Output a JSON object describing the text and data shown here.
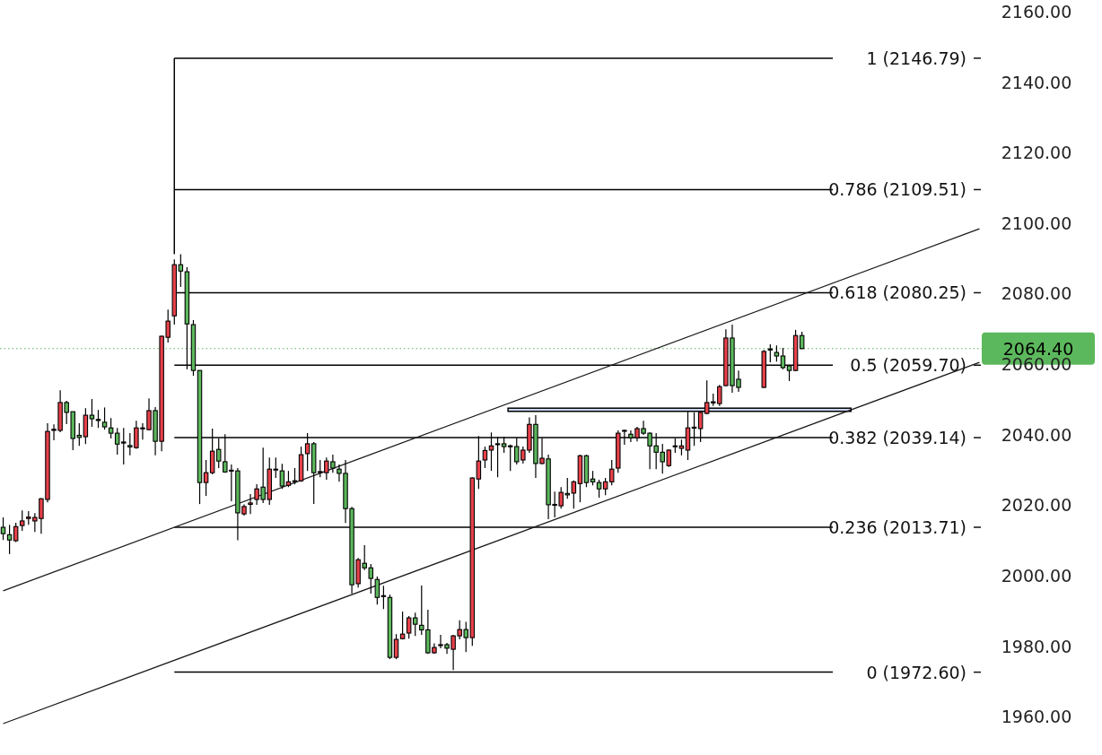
{
  "chart_data": {
    "type": "candlestick",
    "categories": [
      null,
      null,
      null,
      null,
      null,
      null,
      null,
      null,
      null,
      null,
      null,
      null,
      null,
      null,
      null,
      null,
      null,
      null,
      null,
      null,
      null,
      null,
      null,
      null,
      null,
      null,
      null,
      null,
      null,
      null,
      null,
      null,
      null,
      null,
      null,
      null,
      null,
      null,
      null,
      null,
      null,
      null,
      null,
      null,
      null,
      null,
      null,
      null,
      null,
      null,
      null,
      null,
      null,
      null,
      null,
      null,
      null,
      null,
      null,
      null,
      null,
      null,
      null,
      null,
      null,
      null,
      null,
      null,
      null,
      null,
      null,
      null,
      null,
      null,
      null,
      null,
      null,
      null,
      null,
      null,
      null,
      null,
      null,
      null,
      null,
      null,
      null,
      null,
      null,
      null,
      null,
      null,
      null,
      null,
      null,
      null,
      null,
      null,
      null,
      null,
      null,
      null,
      null,
      null,
      null,
      null,
      null,
      null,
      null,
      null,
      null,
      null,
      null,
      null,
      null,
      null,
      null,
      null,
      null,
      null,
      null,
      null,
      null,
      null,
      null,
      null,
      null,
      null,
      null,
      null,
      null,
      null,
      null,
      null,
      null,
      null,
      null,
      null,
      null,
      null,
      null,
      null,
      null,
      null,
      null,
      null,
      null,
      null,
      null,
      null,
      null,
      null,
      null,
      null,
      null
    ],
    "ohlc": [
      [
        2013.7,
        2016.5,
        2010.1,
        2011.9
      ],
      [
        2011.6,
        2014.4,
        2006.1,
        2010.1
      ],
      [
        2009.9,
        2015.0,
        2009.5,
        2013.9
      ],
      [
        2014.2,
        2018.5,
        2012.7,
        2015.5
      ],
      [
        2016.2,
        2018.3,
        2014.4,
        2016.6
      ],
      [
        2015.5,
        2017.7,
        2012.4,
        2016.5
      ],
      [
        2016.2,
        2022.0,
        2011.9,
        2021.8
      ],
      [
        2021.6,
        2043.2,
        2020.8,
        2040.9
      ],
      [
        2041.2,
        2042.9,
        2038.4,
        2041.5
      ],
      [
        2041.2,
        2052.6,
        2040.7,
        2049.1
      ],
      [
        2049.1,
        2049.6,
        2043.0,
        2046.3
      ],
      [
        2046.5,
        2046.5,
        2035.6,
        2038.9
      ],
      [
        2039.8,
        2043.2,
        2036.8,
        2039.2
      ],
      [
        2039.4,
        2047.5,
        2037.3,
        2045.5
      ],
      [
        2045.5,
        2050.1,
        2042.2,
        2044.5
      ],
      [
        2044.3,
        2047.0,
        2041.9,
        2044.0
      ],
      [
        2043.5,
        2047.7,
        2041.4,
        2042.2
      ],
      [
        2041.9,
        2044.7,
        2038.9,
        2040.4
      ],
      [
        2040.4,
        2041.9,
        2034.3,
        2037.3
      ],
      [
        2037.9,
        2041.9,
        2031.5,
        2037.6
      ],
      [
        2036.9,
        2040.4,
        2034.1,
        2036.5
      ],
      [
        2036.3,
        2043.9,
        2036.0,
        2041.9
      ],
      [
        2041.7,
        2043.2,
        2038.6,
        2041.9
      ],
      [
        2041.4,
        2050.3,
        2041.2,
        2046.8
      ],
      [
        2046.8,
        2047.8,
        2034.1,
        2038.1
      ],
      [
        2038.1,
        2068.1,
        2035.3,
        2067.9
      ],
      [
        2067.6,
        2075.5,
        2066.1,
        2072.2
      ],
      [
        2073.7,
        2089.7,
        2071.2,
        2088.2
      ],
      [
        2088.2,
        2091.2,
        2081.9,
        2086.4
      ],
      [
        2086.2,
        2087.5,
        2058.5,
        2071.4
      ],
      [
        2071.2,
        2072.5,
        2056.7,
        2058.2
      ],
      [
        2058.2,
        2058.2,
        2020.3,
        2026.4
      ],
      [
        2026.4,
        2032.8,
        2022.6,
        2029.2
      ],
      [
        2029.2,
        2041.7,
        2028.7,
        2035.3
      ],
      [
        2035.8,
        2038.9,
        2030.5,
        2032.5
      ],
      [
        2032.3,
        2040.1,
        2029.2,
        2029.4
      ],
      [
        2029.9,
        2031.5,
        2021.1,
        2029.7
      ],
      [
        2029.7,
        2030.5,
        2010.0,
        2017.8
      ],
      [
        2017.5,
        2020.2,
        2017.0,
        2019.6
      ],
      [
        2020.2,
        2023.1,
        2017.5,
        2020.6
      ],
      [
        2021.6,
        2025.9,
        2020.1,
        2024.6
      ],
      [
        2025.1,
        2036.3,
        2020.6,
        2021.6
      ],
      [
        2021.6,
        2033.5,
        2020.1,
        2030.2
      ],
      [
        2030.0,
        2033.5,
        2027.7,
        2030.2
      ],
      [
        2029.7,
        2031.7,
        2024.6,
        2025.4
      ],
      [
        2025.6,
        2029.7,
        2025.1,
        2026.6
      ],
      [
        2026.8,
        2030.5,
        2025.9,
        2026.9
      ],
      [
        2026.9,
        2036.6,
        2026.6,
        2034.3
      ],
      [
        2034.6,
        2040.4,
        2029.7,
        2037.4
      ],
      [
        2037.4,
        2037.9,
        2020.3,
        2029.2
      ],
      [
        2029.5,
        2032.8,
        2027.9,
        2029.4
      ],
      [
        2029.2,
        2033.5,
        2027.2,
        2032.5
      ],
      [
        2032.3,
        2034.3,
        2029.2,
        2030.5
      ],
      [
        2030.2,
        2031.5,
        2026.6,
        2029.0
      ],
      [
        2029.0,
        2032.8,
        2014.9,
        2019.0
      ],
      [
        2019.0,
        2019.5,
        1994.9,
        1997.4
      ],
      [
        1997.7,
        2005.0,
        1996.6,
        2004.5
      ],
      [
        2003.5,
        2008.6,
        2001.6,
        2002.2
      ],
      [
        2002.2,
        2003.3,
        1994.9,
        1999.2
      ],
      [
        1998.9,
        1999.7,
        1991.8,
        1993.8
      ],
      [
        1994.3,
        1997.1,
        1990.5,
        1994.1
      ],
      [
        1993.8,
        1994.6,
        1976.3,
        1976.8
      ],
      [
        1976.8,
        1983.4,
        1976.3,
        1981.9
      ],
      [
        1982.1,
        1989.8,
        1981.9,
        1983.4
      ],
      [
        1983.7,
        1988.5,
        1982.1,
        1988.0
      ],
      [
        1988.0,
        1989.5,
        1982.9,
        1986.2
      ],
      [
        1985.9,
        1997.2,
        1983.2,
        1984.6
      ],
      [
        1984.6,
        1990.3,
        1977.8,
        1978.1
      ],
      [
        1978.1,
        1980.8,
        1977.8,
        1979.6
      ],
      [
        1980.2,
        1983.2,
        1979.4,
        1980.4
      ],
      [
        1980.4,
        1980.9,
        1977.8,
        1979.4
      ],
      [
        1979.1,
        1983.2,
        1973.2,
        1982.9
      ],
      [
        1982.9,
        1987.3,
        1981.9,
        1984.7
      ],
      [
        1984.7,
        1986.9,
        1978.3,
        1982.4
      ],
      [
        1982.4,
        2027.9,
        1980.1,
        2027.7
      ],
      [
        2027.4,
        2039.6,
        2024.6,
        2032.5
      ],
      [
        2032.8,
        2036.6,
        2030.5,
        2035.5
      ],
      [
        2035.6,
        2040.6,
        2029.7,
        2036.8
      ],
      [
        2037.3,
        2039.4,
        2027.9,
        2037.4
      ],
      [
        2037.4,
        2039.4,
        2034.8,
        2036.6
      ],
      [
        2036.8,
        2037.2,
        2029.7,
        2036.7
      ],
      [
        2036.6,
        2039.1,
        2031.5,
        2032.3
      ],
      [
        2032.8,
        2036.6,
        2031.8,
        2035.6
      ],
      [
        2035.6,
        2044.9,
        2034.8,
        2042.9
      ],
      [
        2042.9,
        2045.5,
        2027.7,
        2031.8
      ],
      [
        2031.8,
        2039.1,
        2031.6,
        2033.3
      ],
      [
        2033.1,
        2034.3,
        2016.0,
        2020.1
      ],
      [
        2020.2,
        2023.8,
        2016.5,
        2020.0
      ],
      [
        2019.8,
        2025.1,
        2019.0,
        2023.6
      ],
      [
        2023.3,
        2027.7,
        2021.8,
        2022.9
      ],
      [
        2023.4,
        2027.0,
        2019.0,
        2026.6
      ],
      [
        2026.1,
        2034.3,
        2020.8,
        2034.0
      ],
      [
        2034.0,
        2034.3,
        2025.1,
        2026.4
      ],
      [
        2027.4,
        2029.7,
        2025.6,
        2026.6
      ],
      [
        2026.4,
        2027.2,
        2022.1,
        2024.6
      ],
      [
        2024.6,
        2027.7,
        2022.8,
        2026.6
      ],
      [
        2026.6,
        2032.8,
        2025.6,
        2030.2
      ],
      [
        2030.5,
        2041.2,
        2029.2,
        2040.4
      ],
      [
        2041.0,
        2041.4,
        2037.1,
        2041.2
      ],
      [
        2040.1,
        2041.2,
        2037.9,
        2039.1
      ],
      [
        2039.1,
        2042.2,
        2038.1,
        2041.7
      ],
      [
        2041.7,
        2043.9,
        2039.9,
        2040.4
      ],
      [
        2040.4,
        2040.6,
        2030.2,
        2036.8
      ],
      [
        2036.8,
        2040.4,
        2030.2,
        2035.0
      ],
      [
        2035.0,
        2037.4,
        2028.9,
        2032.3
      ],
      [
        2031.2,
        2035.8,
        2030.8,
        2035.6
      ],
      [
        2036.6,
        2038.9,
        2034.8,
        2036.8
      ],
      [
        2036.1,
        2038.6,
        2034.1,
        2036.8
      ],
      [
        2035.6,
        2046.5,
        2032.8,
        2041.9
      ],
      [
        2041.9,
        2046.3,
        2036.8,
        2042.1
      ],
      [
        2041.7,
        2046.8,
        2037.9,
        2046.3
      ],
      [
        2046.0,
        2055.4,
        2045.8,
        2049.1
      ],
      [
        2049.0,
        2051.6,
        2048.1,
        2049.3
      ],
      [
        2048.8,
        2054.1,
        2048.1,
        2053.6
      ],
      [
        2053.9,
        2069.9,
        2053.7,
        2067.4
      ],
      [
        2067.4,
        2071.2,
        2051.9,
        2053.9
      ],
      [
        2055.7,
        2058.2,
        2052.1,
        2053.4
      ],
      null,
      null,
      null,
      [
        2053.4,
        2064.0,
        2053.2,
        2063.6
      ],
      [
        2064.0,
        2065.6,
        2060.5,
        2064.3
      ],
      [
        2063.3,
        2065.3,
        2060.7,
        2062.3
      ],
      [
        2062.3,
        2064.6,
        2058.5,
        2059.0
      ],
      [
        2059.5,
        2059.7,
        2055.2,
        2058.2
      ],
      [
        2058.2,
        2069.7,
        2058.0,
        2068.1
      ],
      [
        2068.1,
        2069.2,
        2064.2,
        2064.4
      ],
      null,
      null,
      null,
      null,
      null,
      null,
      null,
      null,
      null,
      null,
      null,
      null,
      null,
      null,
      null,
      null,
      null,
      null,
      null,
      null,
      null,
      null,
      null,
      null,
      null,
      null,
      null,
      null
    ],
    "colors": [
      "#5cb85c",
      "#5cb85c",
      "#e8414b",
      "#e8414b",
      "#e8414b",
      "#e8414b",
      "#e8414b",
      "#e8414b",
      "#e8414b",
      "#e8414b",
      "#5cb85c",
      "#5cb85c",
      "#5cb85c",
      "#e8414b",
      "#5cb85c",
      "#5cb85c",
      "#5cb85c",
      "#5cb85c",
      "#5cb85c",
      "#5cb85c",
      "#5cb85c",
      "#e8414b",
      "#e8414b",
      "#e8414b",
      "#5cb85c",
      "#e8414b",
      "#e8414b",
      "#e8414b",
      "#5cb85c",
      "#5cb85c",
      "#5cb85c",
      "#5cb85c",
      "#e8414b",
      "#e8414b",
      "#5cb85c",
      "#5cb85c",
      "#5cb85c",
      "#5cb85c",
      "#e8414b",
      "#e8414b",
      "#e8414b",
      "#5cb85c",
      "#e8414b",
      "#e8414b",
      "#5cb85c",
      "#e8414b",
      "#e8414b",
      "#e8414b",
      "#e8414b",
      "#5cb85c",
      "#5cb85c",
      "#e8414b",
      "#5cb85c",
      "#5cb85c",
      "#5cb85c",
      "#5cb85c",
      "#e8414b",
      "#5cb85c",
      "#5cb85c",
      "#5cb85c",
      "#5cb85c",
      "#5cb85c",
      "#e8414b",
      "#e8414b",
      "#e8414b",
      "#5cb85c",
      "#5cb85c",
      "#5cb85c",
      "#e8414b",
      "#e8414b",
      "#5cb85c",
      "#e8414b",
      "#e8414b",
      "#5cb85c",
      "#e8414b",
      "#e8414b",
      "#e8414b",
      "#e8414b",
      "#e8414b",
      "#5cb85c",
      "#5cb85c",
      "#5cb85c",
      "#e8414b",
      "#e8414b",
      "#5cb85c",
      "#e8414b",
      "#5cb85c",
      "#5cb85c",
      "#e8414b",
      "#5cb85c",
      "#e8414b",
      "#e8414b",
      "#5cb85c",
      "#5cb85c",
      "#5cb85c",
      "#e8414b",
      "#e8414b",
      "#e8414b",
      "#e8414b",
      "#5cb85c",
      "#e8414b",
      "#5cb85c",
      "#5cb85c",
      "#5cb85c",
      "#5cb85c",
      "#e8414b",
      "#e8414b",
      "#e8414b",
      "#e8414b",
      "#e8414b",
      "#e8414b",
      "#e8414b",
      "#e8414b",
      "#e8414b",
      "#e8414b",
      "#5cb85c",
      "#5cb85c",
      null,
      null,
      null,
      "#e8414b",
      "#e8414b",
      "#5cb85c",
      "#5cb85c",
      "#5cb85c",
      "#e8414b",
      "#5cb85c",
      null,
      null,
      null,
      null,
      null,
      null,
      null,
      null,
      null,
      null,
      null,
      null,
      null,
      null,
      null,
      null,
      null,
      null,
      null,
      null,
      null,
      null,
      null,
      null,
      null,
      null,
      null,
      null
    ],
    "series": [
      {
        "type": "line",
        "color": "#1a1a1a",
        "values": [
          1995.7,
          null,
          null,
          null,
          null,
          null,
          null,
          null,
          null,
          null,
          null,
          null,
          null,
          null,
          null,
          null,
          null,
          null,
          null,
          null,
          null,
          null,
          null,
          null,
          null,
          null,
          null,
          null,
          null,
          null,
          null,
          null,
          null,
          null,
          null,
          null,
          null,
          null,
          null,
          null,
          null,
          null,
          null,
          null,
          null,
          null,
          null,
          null,
          null,
          null,
          null,
          null,
          null,
          null,
          null,
          null,
          null,
          null,
          null,
          null,
          null,
          null,
          null,
          null,
          null,
          null,
          null,
          null,
          null,
          null,
          null,
          null,
          null,
          null,
          null,
          null,
          null,
          null,
          null,
          null,
          null,
          null,
          null,
          null,
          null,
          null,
          null,
          null,
          null,
          null,
          null,
          null,
          null,
          null,
          null,
          null,
          null,
          null,
          null,
          null,
          null,
          null,
          null,
          null,
          null,
          null,
          null,
          null,
          null,
          null,
          null,
          null,
          null,
          null,
          null,
          null,
          null,
          null,
          null,
          null,
          null,
          null,
          null,
          null,
          null,
          null,
          null,
          null,
          null,
          null,
          null,
          null,
          null,
          null,
          null,
          null,
          null,
          null,
          null,
          null,
          null,
          null,
          null,
          null,
          null,
          null,
          null,
          null,
          null,
          null,
          null,
          null,
          null,
          null,
          2098.4
        ]
      },
      {
        "type": "line",
        "color": "#1a1a1a",
        "values": [
          1958.0,
          null,
          null,
          null,
          null,
          null,
          null,
          null,
          null,
          null,
          null,
          null,
          null,
          null,
          null,
          null,
          null,
          null,
          null,
          null,
          null,
          null,
          null,
          null,
          null,
          null,
          null,
          null,
          null,
          null,
          null,
          null,
          null,
          null,
          null,
          null,
          null,
          null,
          null,
          null,
          null,
          null,
          null,
          null,
          null,
          null,
          null,
          null,
          null,
          null,
          null,
          null,
          null,
          null,
          null,
          null,
          null,
          null,
          null,
          null,
          null,
          null,
          null,
          null,
          null,
          null,
          null,
          null,
          null,
          null,
          null,
          null,
          null,
          null,
          null,
          null,
          null,
          null,
          null,
          null,
          null,
          null,
          null,
          null,
          null,
          null,
          null,
          null,
          null,
          null,
          null,
          null,
          null,
          null,
          null,
          null,
          null,
          null,
          null,
          null,
          null,
          null,
          null,
          null,
          null,
          null,
          null,
          null,
          null,
          null,
          null,
          null,
          null,
          null,
          null,
          null,
          null,
          null,
          null,
          null,
          null,
          null,
          null,
          null,
          null,
          null,
          null,
          null,
          null,
          null,
          null,
          null,
          null,
          null,
          null,
          null,
          null,
          null,
          null,
          null,
          null,
          null,
          null,
          null,
          null,
          null,
          null,
          null,
          null,
          null,
          null,
          null,
          null,
          null,
          2060.5
        ]
      }
    ],
    "ylim": [
      1949.1,
      2163.3
    ],
    "yticks": [
      {
        "value": 1960,
        "label": "1960.00"
      },
      {
        "value": 1980,
        "label": "1980.00"
      },
      {
        "value": 2000,
        "label": "2000.00"
      },
      {
        "value": 2020,
        "label": "2020.00"
      },
      {
        "value": 2040,
        "label": "2040.00"
      },
      {
        "value": 2060,
        "label": "2060.00"
      },
      {
        "value": 2080,
        "label": "2080.00"
      },
      {
        "value": 2100,
        "label": "2100.00"
      },
      {
        "value": 2120,
        "label": "2120.00"
      },
      {
        "value": 2140,
        "label": "2140.00"
      },
      {
        "value": 2160,
        "label": "2160.00"
      }
    ],
    "ref_lines": [
      {
        "axis": "y",
        "value": 2146.79,
        "label": "1 (2146.79)",
        "color": "#000000"
      },
      {
        "axis": "y",
        "value": 2109.51,
        "label": "0.786 (2109.51)",
        "color": "#000000"
      },
      {
        "axis": "y",
        "value": 2080.25,
        "label": "0.618 (2080.25)",
        "color": "#000000"
      },
      {
        "axis": "y",
        "value": 2059.7,
        "label": "0.5 (2059.70)",
        "color": "#000000"
      },
      {
        "axis": "y",
        "value": 2039.14,
        "label": "0.382 (2039.14)",
        "color": "#000000"
      },
      {
        "axis": "y",
        "value": 2013.71,
        "label": "0.236 (2013.71)",
        "color": "#000000"
      },
      {
        "axis": "y",
        "value": 1972.6,
        "label": "0 (1972.60)",
        "color": "#000000"
      },
      {
        "axis": "y",
        "value": 2064.4,
        "label": "2064.40",
        "color": "#5cb85c",
        "line_style": "dotted"
      }
    ],
    "bands": [
      {
        "axis": "y",
        "from": 2046.6,
        "to": 2047.5,
        "color": "#c9d7f0"
      }
    ],
    "tick_labels": "y",
    "grid": false
  }
}
